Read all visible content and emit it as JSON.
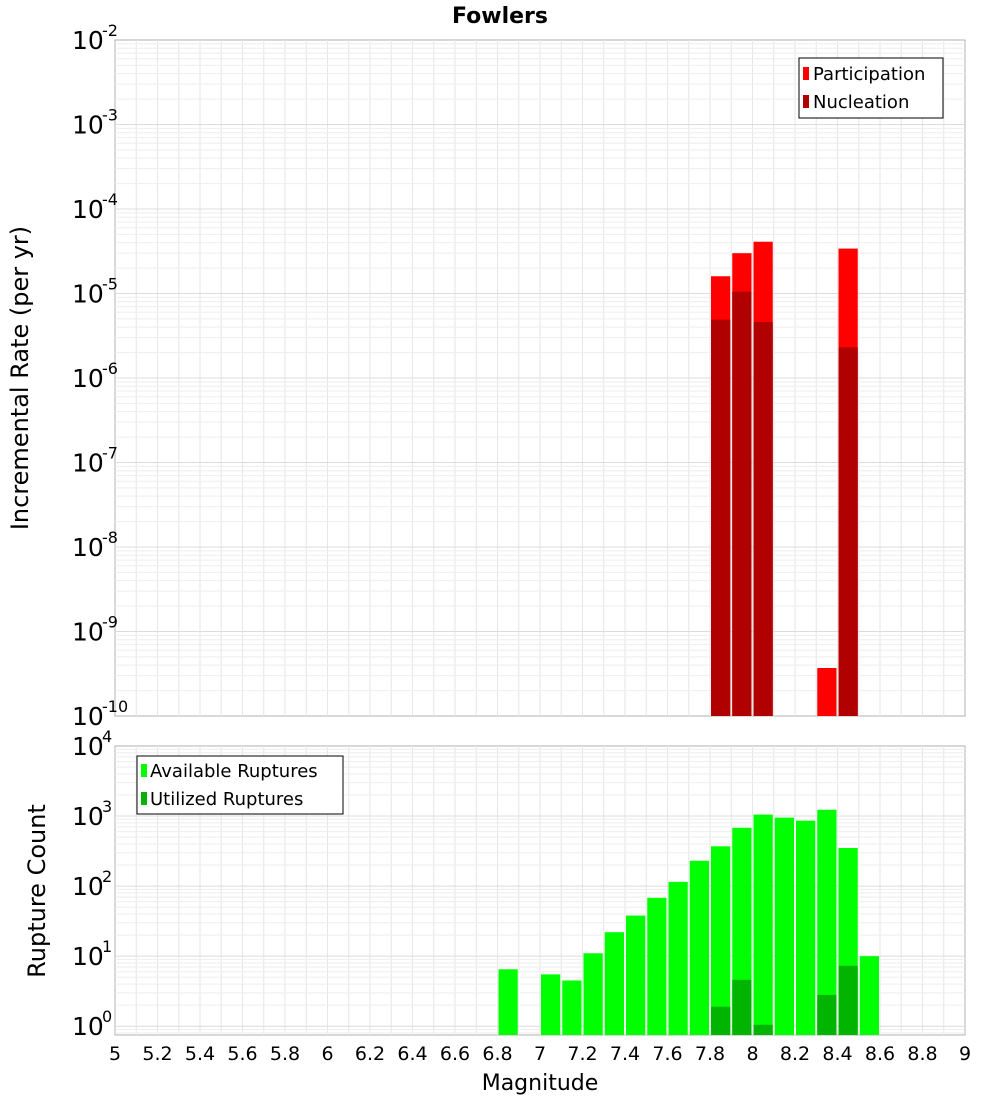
{
  "chart_data": [
    {
      "type": "bar",
      "title": "Fowlers",
      "ylabel": "Incremental Rate (per yr)",
      "xlabel": "",
      "y_scale": "log",
      "ylim": [
        1e-10,
        0.01
      ],
      "xlim": [
        5,
        9
      ],
      "y_ticks": [
        {
          "base": "10",
          "exp": "-2",
          "value": 0.01
        },
        {
          "base": "10",
          "exp": "-3",
          "value": 0.001
        },
        {
          "base": "10",
          "exp": "-4",
          "value": 0.0001
        },
        {
          "base": "10",
          "exp": "-5",
          "value": 1e-05
        },
        {
          "base": "10",
          "exp": "-6",
          "value": 1e-06
        },
        {
          "base": "10",
          "exp": "-7",
          "value": 1e-07
        },
        {
          "base": "10",
          "exp": "-8",
          "value": 1e-08
        },
        {
          "base": "10",
          "exp": "-9",
          "value": 1e-09
        },
        {
          "base": "10",
          "exp": "-10",
          "value": 1e-10
        }
      ],
      "legend_position": "top-right",
      "series": [
        {
          "name": "Participation",
          "color": "#ff0000",
          "x": [
            7.85,
            7.95,
            8.05,
            8.35,
            8.45
          ],
          "values": [
            1.6e-05,
            3e-05,
            4.1e-05,
            3.7e-10,
            3.4e-05
          ]
        },
        {
          "name": "Nucleation",
          "color": "#b00000",
          "x": [
            7.85,
            7.95,
            8.05,
            8.45
          ],
          "values": [
            4.9e-06,
            1.05e-05,
            4.6e-06,
            2.3e-06
          ]
        }
      ]
    },
    {
      "type": "bar",
      "title": "",
      "ylabel": "Rupture Count",
      "xlabel": "Magnitude",
      "y_scale": "log",
      "ylim": [
        0.75,
        10000
      ],
      "xlim": [
        5,
        9
      ],
      "y_ticks": [
        {
          "base": "10",
          "exp": "4",
          "value": 10000
        },
        {
          "base": "10",
          "exp": "3",
          "value": 1000
        },
        {
          "base": "10",
          "exp": "2",
          "value": 100
        },
        {
          "base": "10",
          "exp": "1",
          "value": 10
        },
        {
          "base": "10",
          "exp": "0",
          "value": 1
        }
      ],
      "x_ticks": [
        "5",
        "5.2",
        "5.4",
        "5.6",
        "5.8",
        "6",
        "6.2",
        "6.4",
        "6.6",
        "6.8",
        "7",
        "7.2",
        "7.4",
        "7.6",
        "7.8",
        "8",
        "8.2",
        "8.4",
        "8.6",
        "8.8",
        "9"
      ],
      "legend_position": "top-left",
      "series": [
        {
          "name": "Available Ruptures",
          "color": "#00ff00",
          "x": [
            6.85,
            7.05,
            7.15,
            7.25,
            7.35,
            7.45,
            7.55,
            7.65,
            7.75,
            7.85,
            7.95,
            8.05,
            8.15,
            8.25,
            8.35,
            8.45,
            8.55
          ],
          "values": [
            6.5,
            5.5,
            4.5,
            11,
            22,
            38,
            68,
            115,
            230,
            370,
            680,
            1050,
            950,
            860,
            1230,
            350,
            10
          ]
        },
        {
          "name": "Utilized Ruptures",
          "color": "#00b400",
          "x": [
            7.85,
            7.95,
            8.05,
            8.35,
            8.45
          ],
          "values": [
            1.9,
            4.6,
            1.05,
            2.8,
            7.3
          ]
        }
      ]
    }
  ]
}
